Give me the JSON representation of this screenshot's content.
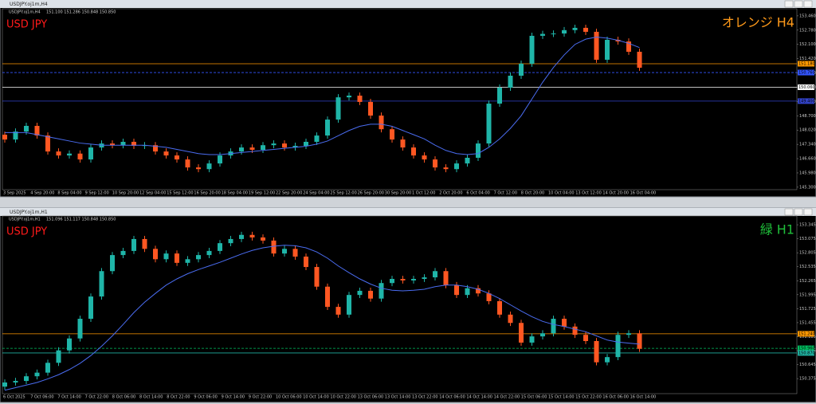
{
  "chart_data": [
    {
      "type": "candlestick",
      "title": "USDJPY.oj1m,H4",
      "quote": "151.100 151.286 150.848 150.850",
      "symbol_label": "USD JPY",
      "timeframe_label": "オレンジ H4",
      "symbol_color": "#ff1a1a",
      "timeframe_color": "#ff9a1a",
      "up_color": "#1fb5a8",
      "down_color": "#ff5722",
      "ma_color": "#4a6cf0",
      "ylim": [
        145.22,
        153.76
      ],
      "yticks": [
        {
          "value": 153.46,
          "label": "153.460"
        },
        {
          "value": 152.78,
          "label": "152.780"
        },
        {
          "value": 152.1,
          "label": "152.100"
        },
        {
          "value": 151.42,
          "label": "151.420"
        },
        {
          "value": 150.74,
          "label": "150.740"
        },
        {
          "value": 150.06,
          "label": "150.060"
        },
        {
          "value": 149.38,
          "label": "149.380"
        },
        {
          "value": 148.7,
          "label": "148.700"
        },
        {
          "value": 148.02,
          "label": "148.020"
        },
        {
          "value": 147.34,
          "label": "147.340"
        },
        {
          "value": 146.66,
          "label": "146.660"
        },
        {
          "value": 145.98,
          "label": "145.980"
        },
        {
          "value": 145.3,
          "label": "145.300"
        }
      ],
      "hlines": [
        {
          "value": 151.18,
          "label": "151.180",
          "color": "#ff9900",
          "dashed": false
        },
        {
          "value": 150.76,
          "label": "150.760",
          "color": "#3355ff",
          "dashed": true
        },
        {
          "value": 150.06,
          "label": "150.060",
          "color": "#ffffff",
          "dashed": false
        },
        {
          "value": 149.4,
          "label": "149.400",
          "color": "#3344cc",
          "dashed": false
        }
      ],
      "xticks": [
        "3 Sep 2025",
        "4 Sep 20:00",
        "8 Sep 04:00",
        "9 Sep 12:00",
        "10 Sep 20:00",
        "12 Sep 04:00",
        "15 Sep 12:00",
        "16 Sep 20:00",
        "18 Sep 04:00",
        "19 Sep 12:00",
        "22 Sep 20:00",
        "24 Sep 04:00",
        "25 Sep 12:00",
        "26 Sep 20:00",
        "30 Sep 20:00",
        "1 Oct 12:00",
        "2 Oct 20:00",
        "6 Oct 04:00",
        "7 Oct 12:00",
        "8 Oct 20:00",
        "10 Oct 04:00",
        "13 Oct 12:00",
        "14 Oct 20:00",
        "16 Oct 04:00"
      ],
      "open": [
        147.8,
        147.57,
        147.95,
        148.22,
        147.76,
        147.0,
        146.81,
        146.9,
        146.62,
        147.19,
        147.38,
        147.3,
        147.46,
        147.27,
        147.3,
        147.0,
        146.81,
        146.62,
        146.24,
        146.16,
        146.43,
        146.81,
        147.0,
        147.19,
        147.08,
        147.3,
        147.38,
        147.19,
        147.27,
        147.46,
        147.76,
        148.52,
        149.58,
        149.66,
        149.36,
        148.71,
        148.06,
        147.57,
        147.19,
        146.81,
        146.62,
        146.24,
        146.16,
        146.43,
        146.7,
        147.38,
        149.28,
        150.04,
        150.61,
        151.18,
        152.51,
        152.6,
        152.62,
        152.78,
        152.89,
        152.7,
        151.37,
        152.32,
        152.24,
        151.75
      ],
      "high": [
        147.95,
        148.1,
        148.37,
        148.37,
        147.91,
        147.15,
        147.05,
        147.05,
        147.34,
        147.53,
        147.53,
        147.61,
        147.61,
        147.45,
        147.45,
        147.15,
        146.96,
        146.77,
        146.39,
        146.58,
        146.96,
        147.15,
        147.34,
        147.34,
        147.45,
        147.53,
        147.53,
        147.42,
        147.61,
        147.91,
        148.67,
        149.73,
        149.81,
        149.81,
        149.51,
        148.86,
        148.21,
        147.72,
        147.34,
        146.96,
        146.77,
        146.39,
        146.58,
        146.85,
        147.53,
        149.43,
        150.19,
        150.76,
        151.33,
        152.66,
        152.75,
        152.77,
        152.93,
        153.04,
        153.04,
        152.85,
        152.47,
        152.47,
        152.39,
        151.9
      ],
      "low": [
        147.42,
        147.42,
        147.8,
        147.61,
        146.85,
        146.66,
        146.66,
        146.47,
        146.47,
        147.04,
        147.15,
        147.15,
        147.12,
        147.12,
        146.85,
        146.66,
        146.47,
        146.09,
        146.01,
        146.01,
        146.28,
        146.66,
        146.85,
        146.93,
        146.93,
        147.15,
        147.04,
        147.04,
        147.12,
        147.31,
        147.61,
        148.37,
        149.43,
        149.21,
        148.56,
        147.91,
        147.42,
        147.04,
        146.66,
        146.47,
        146.09,
        146.01,
        146.01,
        146.28,
        146.55,
        147.23,
        149.13,
        149.89,
        150.46,
        151.03,
        152.36,
        152.45,
        152.47,
        152.63,
        152.55,
        151.22,
        151.22,
        152.09,
        151.6,
        150.84
      ],
      "close": [
        147.57,
        147.95,
        148.22,
        147.76,
        147.0,
        146.81,
        146.9,
        146.62,
        147.19,
        147.38,
        147.3,
        147.46,
        147.27,
        147.3,
        147.0,
        146.81,
        146.62,
        146.24,
        146.16,
        146.43,
        146.81,
        147.0,
        147.19,
        147.08,
        147.3,
        147.38,
        147.19,
        147.27,
        147.46,
        147.76,
        148.52,
        149.58,
        149.66,
        149.36,
        148.71,
        148.06,
        147.57,
        147.19,
        146.81,
        146.62,
        146.24,
        146.16,
        146.43,
        146.7,
        147.38,
        149.28,
        150.04,
        150.61,
        151.18,
        152.51,
        152.6,
        152.62,
        152.78,
        152.89,
        152.7,
        151.37,
        152.32,
        152.24,
        151.75,
        150.99
      ],
      "ma": [
        147.9,
        147.9,
        147.9,
        147.8,
        147.7,
        147.6,
        147.5,
        147.4,
        147.35,
        147.3,
        147.3,
        147.3,
        147.3,
        147.3,
        147.25,
        147.2,
        147.1,
        147.0,
        146.9,
        146.85,
        146.85,
        146.9,
        146.95,
        147.0,
        147.05,
        147.1,
        147.15,
        147.2,
        147.25,
        147.35,
        147.5,
        147.75,
        148.0,
        148.2,
        148.3,
        148.3,
        148.2,
        148.0,
        147.8,
        147.6,
        147.3,
        147.05,
        146.9,
        146.85,
        146.9,
        147.2,
        147.6,
        148.1,
        148.7,
        149.5,
        150.3,
        151.0,
        151.6,
        152.1,
        152.35,
        152.45,
        152.4,
        152.3,
        152.15,
        151.95
      ]
    },
    {
      "type": "candlestick",
      "title": "USDJPY.oj1m,H1",
      "quote": "151.096 151.117 150.848 150.850",
      "symbol_label": "USD JPY",
      "timeframe_label": "緑 H1",
      "symbol_color": "#ff1a1a",
      "timeframe_color": "#1fbf3a",
      "up_color": "#1fb5a8",
      "down_color": "#ff5722",
      "ma_color": "#4a6cf0",
      "ylim": [
        150.1,
        153.5
      ],
      "yticks": [
        153.345,
        153.075,
        152.805,
        152.535,
        152.265,
        151.995,
        151.725,
        151.455,
        151.185,
        150.915,
        150.645,
        150.375
      ],
      "hlines": [
        {
          "value": 151.24,
          "label": "151.240",
          "color": "#ff9900",
          "dashed": false
        },
        {
          "value": 150.96,
          "label": "150.960",
          "color": "#00c060",
          "dashed": true
        },
        {
          "value": 150.87,
          "label": "150.870",
          "color": "#20b0a0",
          "dashed": false
        }
      ],
      "xticks": [
        "6 Oct 2025",
        "7 Oct 06:00",
        "7 Oct 14:00",
        "7 Oct 22:00",
        "8 Oct 06:00",
        "8 Oct 14:00",
        "8 Oct 22:00",
        "9 Oct 06:00",
        "9 Oct 14:00",
        "9 Oct 22:00",
        "10 Oct 06:00",
        "10 Oct 14:00",
        "10 Oct 22:00",
        "13 Oct 06:00",
        "13 Oct 14:00",
        "13 Oct 22:00",
        "14 Oct 06:00",
        "14 Oct 14:00",
        "14 Oct 22:00",
        "15 Oct 06:00",
        "15 Oct 14:00",
        "15 Oct 22:00",
        "16 Oct 06:00",
        "16 Oct 14:00"
      ],
      "open": [
        150.22,
        150.3,
        150.33,
        150.42,
        150.49,
        150.68,
        150.92,
        151.15,
        151.53,
        151.96,
        152.45,
        152.76,
        152.84,
        153.07,
        152.88,
        152.68,
        152.79,
        152.61,
        152.68,
        152.76,
        152.84,
        152.99,
        153.07,
        153.15,
        153.1,
        153.04,
        152.79,
        152.88,
        152.73,
        152.53,
        152.15,
        151.76,
        151.61,
        151.99,
        152.07,
        151.92,
        152.22,
        152.3,
        152.27,
        152.3,
        152.33,
        152.45,
        152.18,
        151.99,
        152.12,
        152.02,
        151.87,
        151.61,
        151.45,
        151.07,
        151.19,
        151.25,
        151.53,
        151.38,
        151.22,
        151.1,
        150.69,
        150.79,
        151.22,
        151.25
      ],
      "high": [
        150.36,
        150.39,
        150.48,
        150.55,
        150.74,
        150.98,
        151.21,
        151.59,
        152.02,
        152.51,
        152.82,
        152.9,
        153.13,
        153.13,
        152.94,
        152.85,
        152.85,
        152.74,
        152.82,
        152.9,
        153.05,
        153.13,
        153.21,
        153.21,
        153.16,
        153.1,
        152.94,
        152.94,
        152.79,
        152.59,
        152.21,
        151.82,
        152.05,
        152.13,
        152.13,
        152.28,
        152.36,
        152.36,
        152.36,
        152.39,
        152.51,
        152.51,
        152.24,
        152.18,
        152.18,
        152.08,
        151.93,
        151.67,
        151.51,
        151.25,
        151.31,
        151.59,
        151.59,
        151.44,
        151.28,
        151.16,
        150.85,
        151.28,
        151.31,
        151.31
      ],
      "low": [
        150.16,
        150.24,
        150.27,
        150.36,
        150.43,
        150.62,
        150.86,
        151.09,
        151.47,
        151.9,
        152.39,
        152.7,
        152.78,
        152.82,
        152.62,
        152.62,
        152.55,
        152.55,
        152.62,
        152.7,
        152.78,
        152.93,
        153.01,
        153.04,
        152.98,
        152.73,
        152.73,
        152.67,
        152.47,
        152.09,
        151.7,
        151.55,
        151.55,
        151.93,
        151.86,
        151.86,
        152.16,
        152.21,
        152.21,
        152.24,
        152.27,
        152.12,
        151.93,
        151.93,
        151.96,
        151.81,
        151.55,
        151.39,
        151.01,
        151.01,
        151.13,
        151.19,
        151.32,
        151.16,
        151.04,
        150.63,
        150.63,
        150.73,
        151.16,
        150.89
      ],
      "close": [
        150.3,
        150.33,
        150.42,
        150.49,
        150.68,
        150.92,
        151.15,
        151.53,
        151.96,
        152.45,
        152.76,
        152.84,
        153.07,
        152.88,
        152.68,
        152.79,
        152.61,
        152.68,
        152.76,
        152.84,
        152.99,
        153.07,
        153.15,
        153.1,
        153.04,
        152.79,
        152.88,
        152.73,
        152.53,
        152.15,
        151.76,
        151.61,
        151.99,
        152.07,
        151.92,
        152.22,
        152.3,
        152.27,
        152.3,
        152.33,
        152.45,
        152.18,
        151.99,
        152.12,
        152.02,
        151.87,
        151.61,
        151.45,
        151.07,
        151.19,
        151.25,
        151.53,
        151.38,
        151.22,
        151.1,
        150.69,
        150.79,
        151.22,
        151.25,
        150.95
      ],
      "ma": [
        150.15,
        150.2,
        150.25,
        150.3,
        150.37,
        150.45,
        150.55,
        150.67,
        150.82,
        151.0,
        151.2,
        151.42,
        151.65,
        151.85,
        152.02,
        152.18,
        152.3,
        152.4,
        152.48,
        152.55,
        152.62,
        152.7,
        152.78,
        152.85,
        152.9,
        152.93,
        152.95,
        152.94,
        152.9,
        152.82,
        152.7,
        152.55,
        152.42,
        152.3,
        152.2,
        152.12,
        152.08,
        152.07,
        152.08,
        152.1,
        152.15,
        152.18,
        152.18,
        152.15,
        152.1,
        152.02,
        151.92,
        151.8,
        151.68,
        151.57,
        151.48,
        151.42,
        151.38,
        151.33,
        151.28,
        151.2,
        151.12,
        151.08,
        151.06,
        151.04
      ]
    }
  ]
}
